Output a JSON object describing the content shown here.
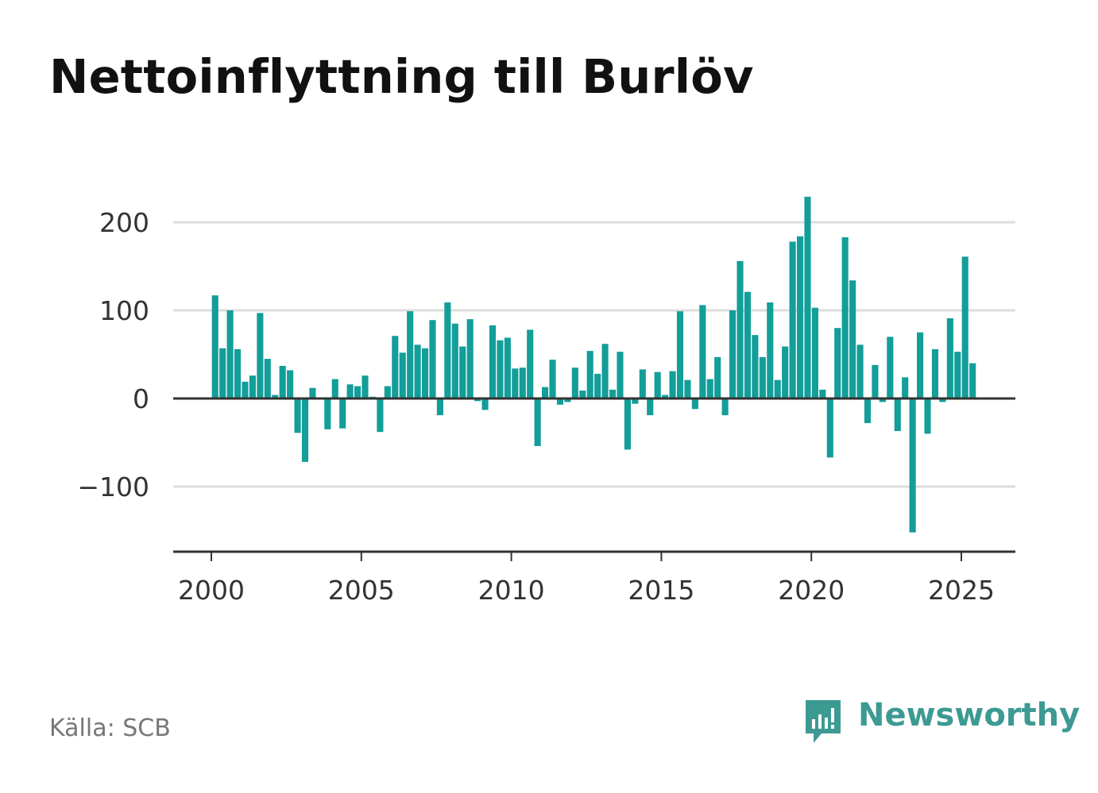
{
  "title": "Nettoinflyttning till Burlöv",
  "source": "Källa: SCB",
  "brand": {
    "name": "Newsworthy",
    "icon": "newsworthy-logo-icon",
    "color": "#3d9a93"
  },
  "colors": {
    "bar": "#139e99",
    "zero_line": "#333333",
    "grid": "#dddddd",
    "axis": "#333333"
  },
  "chart_data": {
    "type": "bar",
    "x_start": 2000.0,
    "x_step": 0.25,
    "xlim": [
      1997.6,
      2026.7
    ],
    "ylim": [
      -175,
      250
    ],
    "xticks": [
      2000,
      2005,
      2010,
      2015,
      2020,
      2025
    ],
    "yticks": [
      200,
      100,
      0,
      -100
    ],
    "ytick_labels": [
      "200",
      "100",
      "0",
      "−100"
    ],
    "grid": true,
    "values": [
      117,
      57,
      100,
      56,
      19,
      26,
      97,
      45,
      4,
      37,
      32,
      -39,
      -72,
      12,
      0,
      -35,
      22,
      -34,
      16,
      14,
      26,
      2,
      -38,
      14,
      71,
      52,
      99,
      61,
      57,
      89,
      -19,
      109,
      85,
      59,
      90,
      -3,
      -13,
      83,
      66,
      69,
      34,
      35,
      78,
      -54,
      13,
      44,
      -7,
      -4,
      35,
      9,
      54,
      28,
      62,
      10,
      53,
      -58,
      -6,
      33,
      -19,
      30,
      4,
      31,
      99,
      21,
      -12,
      106,
      22,
      47,
      -19,
      100,
      156,
      121,
      72,
      47,
      109,
      21,
      59,
      178,
      184,
      229,
      103,
      10,
      -67,
      80,
      183,
      134,
      61,
      -28,
      38,
      -4,
      70,
      -37,
      24,
      -152,
      75,
      -40,
      56,
      -4,
      91,
      53,
      161,
      40
    ]
  }
}
